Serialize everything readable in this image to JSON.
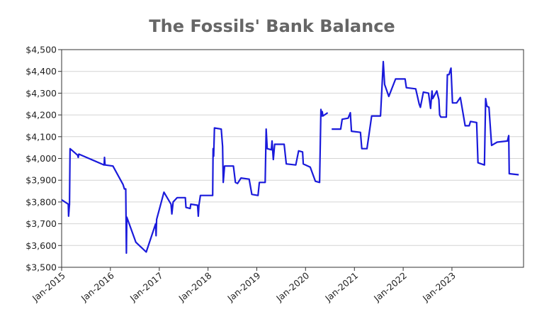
{
  "chart_data": {
    "type": "line",
    "title": "The Fossils' Bank Balance",
    "xlabel": "",
    "ylabel": "",
    "ylim": [
      3500,
      4500
    ],
    "y_tick_labels": [
      "$3,500",
      "$3,600",
      "$3,700",
      "$3,800",
      "$3,900",
      "$4,000",
      "$4,100",
      "$4,200",
      "$4,300",
      "$4,400",
      "$4,500"
    ],
    "x_tick_labels": [
      "Jan-2015",
      "Jan-2016",
      "Jan-2017",
      "Jan-2018",
      "Jan-2019",
      "Jan-2020",
      "Jan-2021",
      "Jan-2022",
      "Jan-2023"
    ],
    "grid": true,
    "legend": "none",
    "line_color": "#1a1adb",
    "series": [
      {
        "values": [
          [
            "2015-01-01",
            3810
          ],
          [
            "2015-02-20",
            3790
          ],
          [
            "2015-02-22",
            3735
          ],
          [
            "2015-03-01",
            3790
          ],
          [
            "2015-03-05",
            4045
          ],
          [
            "2015-05-01",
            4015
          ],
          [
            "2015-05-05",
            4005
          ],
          [
            "2015-05-10",
            4020
          ],
          [
            "2015-11-15",
            3970
          ],
          [
            "2015-11-18",
            4005
          ],
          [
            "2015-11-22",
            3970
          ],
          [
            "2016-01-20",
            3965
          ],
          [
            "2016-04-05",
            3880
          ],
          [
            "2016-04-15",
            3860
          ],
          [
            "2016-04-25",
            3860
          ],
          [
            "2016-04-30",
            3565
          ],
          [
            "2016-05-03",
            3730
          ],
          [
            "2016-07-10",
            3615
          ],
          [
            "2016-09-25",
            3570
          ],
          [
            "2016-12-05",
            3700
          ],
          [
            "2016-12-08",
            3645
          ],
          [
            "2016-12-12",
            3720
          ],
          [
            "2017-02-05",
            3845
          ],
          [
            "2017-03-30",
            3790
          ],
          [
            "2017-04-05",
            3745
          ],
          [
            "2017-04-15",
            3800
          ],
          [
            "2017-05-15",
            3820
          ],
          [
            "2017-07-15",
            3820
          ],
          [
            "2017-07-20",
            3775
          ],
          [
            "2017-08-20",
            3770
          ],
          [
            "2017-08-25",
            3790
          ],
          [
            "2017-10-15",
            3785
          ],
          [
            "2017-10-20",
            3735
          ],
          [
            "2017-10-25",
            3785
          ],
          [
            "2017-11-05",
            3830
          ],
          [
            "2018-02-05",
            3830
          ],
          [
            "2018-02-08",
            4045
          ],
          [
            "2018-02-12",
            4010
          ],
          [
            "2018-02-18",
            4140
          ],
          [
            "2018-04-10",
            4135
          ],
          [
            "2018-04-20",
            4055
          ],
          [
            "2018-04-25",
            3890
          ],
          [
            "2018-05-05",
            3965
          ],
          [
            "2018-07-10",
            3965
          ],
          [
            "2018-07-25",
            3890
          ],
          [
            "2018-08-10",
            3885
          ],
          [
            "2018-09-05",
            3910
          ],
          [
            "2018-11-05",
            3905
          ],
          [
            "2018-11-25",
            3835
          ],
          [
            "2019-01-10",
            3830
          ],
          [
            "2019-01-20",
            3890
          ],
          [
            "2019-03-05",
            3890
          ],
          [
            "2019-03-12",
            4135
          ],
          [
            "2019-03-20",
            4045
          ],
          [
            "2019-04-20",
            4040
          ],
          [
            "2019-04-25",
            4080
          ],
          [
            "2019-05-05",
            3995
          ],
          [
            "2019-05-15",
            4065
          ],
          [
            "2019-07-25",
            4065
          ],
          [
            "2019-08-10",
            3975
          ],
          [
            "2019-10-20",
            3970
          ],
          [
            "2019-11-10",
            4035
          ],
          [
            "2019-12-10",
            4030
          ],
          [
            "2019-12-15",
            3975
          ],
          [
            "2020-02-05",
            3960
          ],
          [
            "2020-03-15",
            3895
          ],
          [
            "2020-04-15",
            3890
          ],
          [
            "2020-04-25",
            4225
          ],
          [
            "2020-05-01",
            4195
          ],
          [
            "2020-05-05",
            4215
          ],
          [
            "2020-05-10",
            4195
          ],
          [
            "2020-06-15",
            4210
          ]
        ]
      },
      {
        "values": [
          [
            "2020-07-15",
            4135
          ],
          [
            "2020-09-20",
            4135
          ],
          [
            "2020-10-01",
            4180
          ],
          [
            "2020-11-15",
            4185
          ],
          [
            "2020-12-01",
            4210
          ],
          [
            "2020-12-10",
            4125
          ],
          [
            "2021-02-15",
            4120
          ],
          [
            "2021-02-25",
            4045
          ],
          [
            "2021-04-05",
            4045
          ],
          [
            "2021-05-10",
            4195
          ],
          [
            "2021-07-15",
            4195
          ],
          [
            "2021-08-05",
            4445
          ],
          [
            "2021-08-15",
            4340
          ],
          [
            "2021-09-15",
            4285
          ],
          [
            "2021-11-05",
            4365
          ],
          [
            "2022-01-15",
            4365
          ],
          [
            "2022-01-25",
            4325
          ],
          [
            "2022-04-05",
            4320
          ],
          [
            "2022-05-01",
            4250
          ],
          [
            "2022-05-10",
            4235
          ],
          [
            "2022-06-01",
            4305
          ],
          [
            "2022-07-10",
            4300
          ],
          [
            "2022-07-25",
            4230
          ],
          [
            "2022-08-05",
            4310
          ],
          [
            "2022-08-10",
            4275
          ],
          [
            "2022-09-10",
            4310
          ],
          [
            "2022-09-25",
            4270
          ],
          [
            "2022-10-01",
            4200
          ],
          [
            "2022-10-10",
            4190
          ],
          [
            "2022-11-20",
            4190
          ],
          [
            "2022-11-28",
            4385
          ],
          [
            "2022-12-10",
            4385
          ],
          [
            "2022-12-25",
            4415
          ],
          [
            "2023-01-05",
            4255
          ],
          [
            "2023-02-05",
            4255
          ],
          [
            "2023-03-05",
            4280
          ],
          [
            "2023-04-10",
            4150
          ],
          [
            "2023-05-10",
            4150
          ],
          [
            "2023-05-20",
            4170
          ],
          [
            "2023-07-05",
            4165
          ],
          [
            "2023-07-15",
            3980
          ],
          [
            "2023-09-01",
            3970
          ],
          [
            "2023-09-10",
            4275
          ],
          [
            "2023-09-20",
            4240
          ],
          [
            "2023-10-05",
            4235
          ],
          [
            "2023-10-25",
            4060
          ],
          [
            "2023-12-05",
            4075
          ],
          [
            "2024-02-20",
            4080
          ],
          [
            "2024-03-01",
            4105
          ],
          [
            "2024-03-05",
            3930
          ],
          [
            "2024-05-15",
            3925
          ]
        ]
      }
    ]
  }
}
